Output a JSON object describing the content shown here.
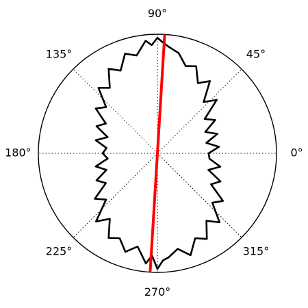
{
  "chart_data": {
    "type": "polar-line",
    "angle_ticks": [
      "0°",
      "45°",
      "90°",
      "135°",
      "180°",
      "225°",
      "270°",
      "315°"
    ],
    "angle_tick_values_deg": [
      0,
      45,
      90,
      135,
      180,
      225,
      270,
      315
    ],
    "radial_grid": false,
    "angular_grid": "dotted",
    "r_max": 1.0,
    "series": [
      {
        "type": "closed-curve",
        "color": "#000000",
        "theta_deg": [
          0,
          6,
          12,
          18,
          24,
          30,
          36,
          42,
          48,
          54,
          60,
          66,
          72,
          78,
          84,
          87,
          90,
          93,
          96,
          102,
          108,
          114,
          120,
          126,
          132,
          138,
          144,
          150,
          156,
          162,
          168,
          174,
          180,
          186,
          192,
          198,
          204,
          210,
          216,
          222,
          228,
          234,
          240,
          246,
          252,
          258,
          264,
          267,
          270,
          273,
          276,
          282,
          288,
          294,
          300,
          306,
          312,
          318,
          324,
          330,
          336,
          342,
          348,
          354
        ],
        "r": [
          0.43,
          0.52,
          0.42,
          0.53,
          0.44,
          0.56,
          0.49,
          0.67,
          0.58,
          0.75,
          0.68,
          0.8,
          0.77,
          0.86,
          0.9,
          0.93,
          0.97,
          0.91,
          0.95,
          0.84,
          0.88,
          0.76,
          0.82,
          0.68,
          0.74,
          0.58,
          0.64,
          0.5,
          0.56,
          0.44,
          0.53,
          0.43,
          0.46,
          0.42,
          0.53,
          0.45,
          0.56,
          0.5,
          0.65,
          0.58,
          0.77,
          0.68,
          0.82,
          0.78,
          0.87,
          0.8,
          0.93,
          0.86,
          0.97,
          0.9,
          0.88,
          0.82,
          0.9,
          0.78,
          0.83,
          0.7,
          0.78,
          0.62,
          0.68,
          0.52,
          0.58,
          0.45,
          0.54,
          0.44
        ]
      },
      {
        "type": "line",
        "color": "#ff0000",
        "points": [
          {
            "theta_deg": 86.5,
            "r": 1.0
          },
          {
            "theta_deg": 266.5,
            "r": 1.0
          }
        ]
      }
    ]
  }
}
